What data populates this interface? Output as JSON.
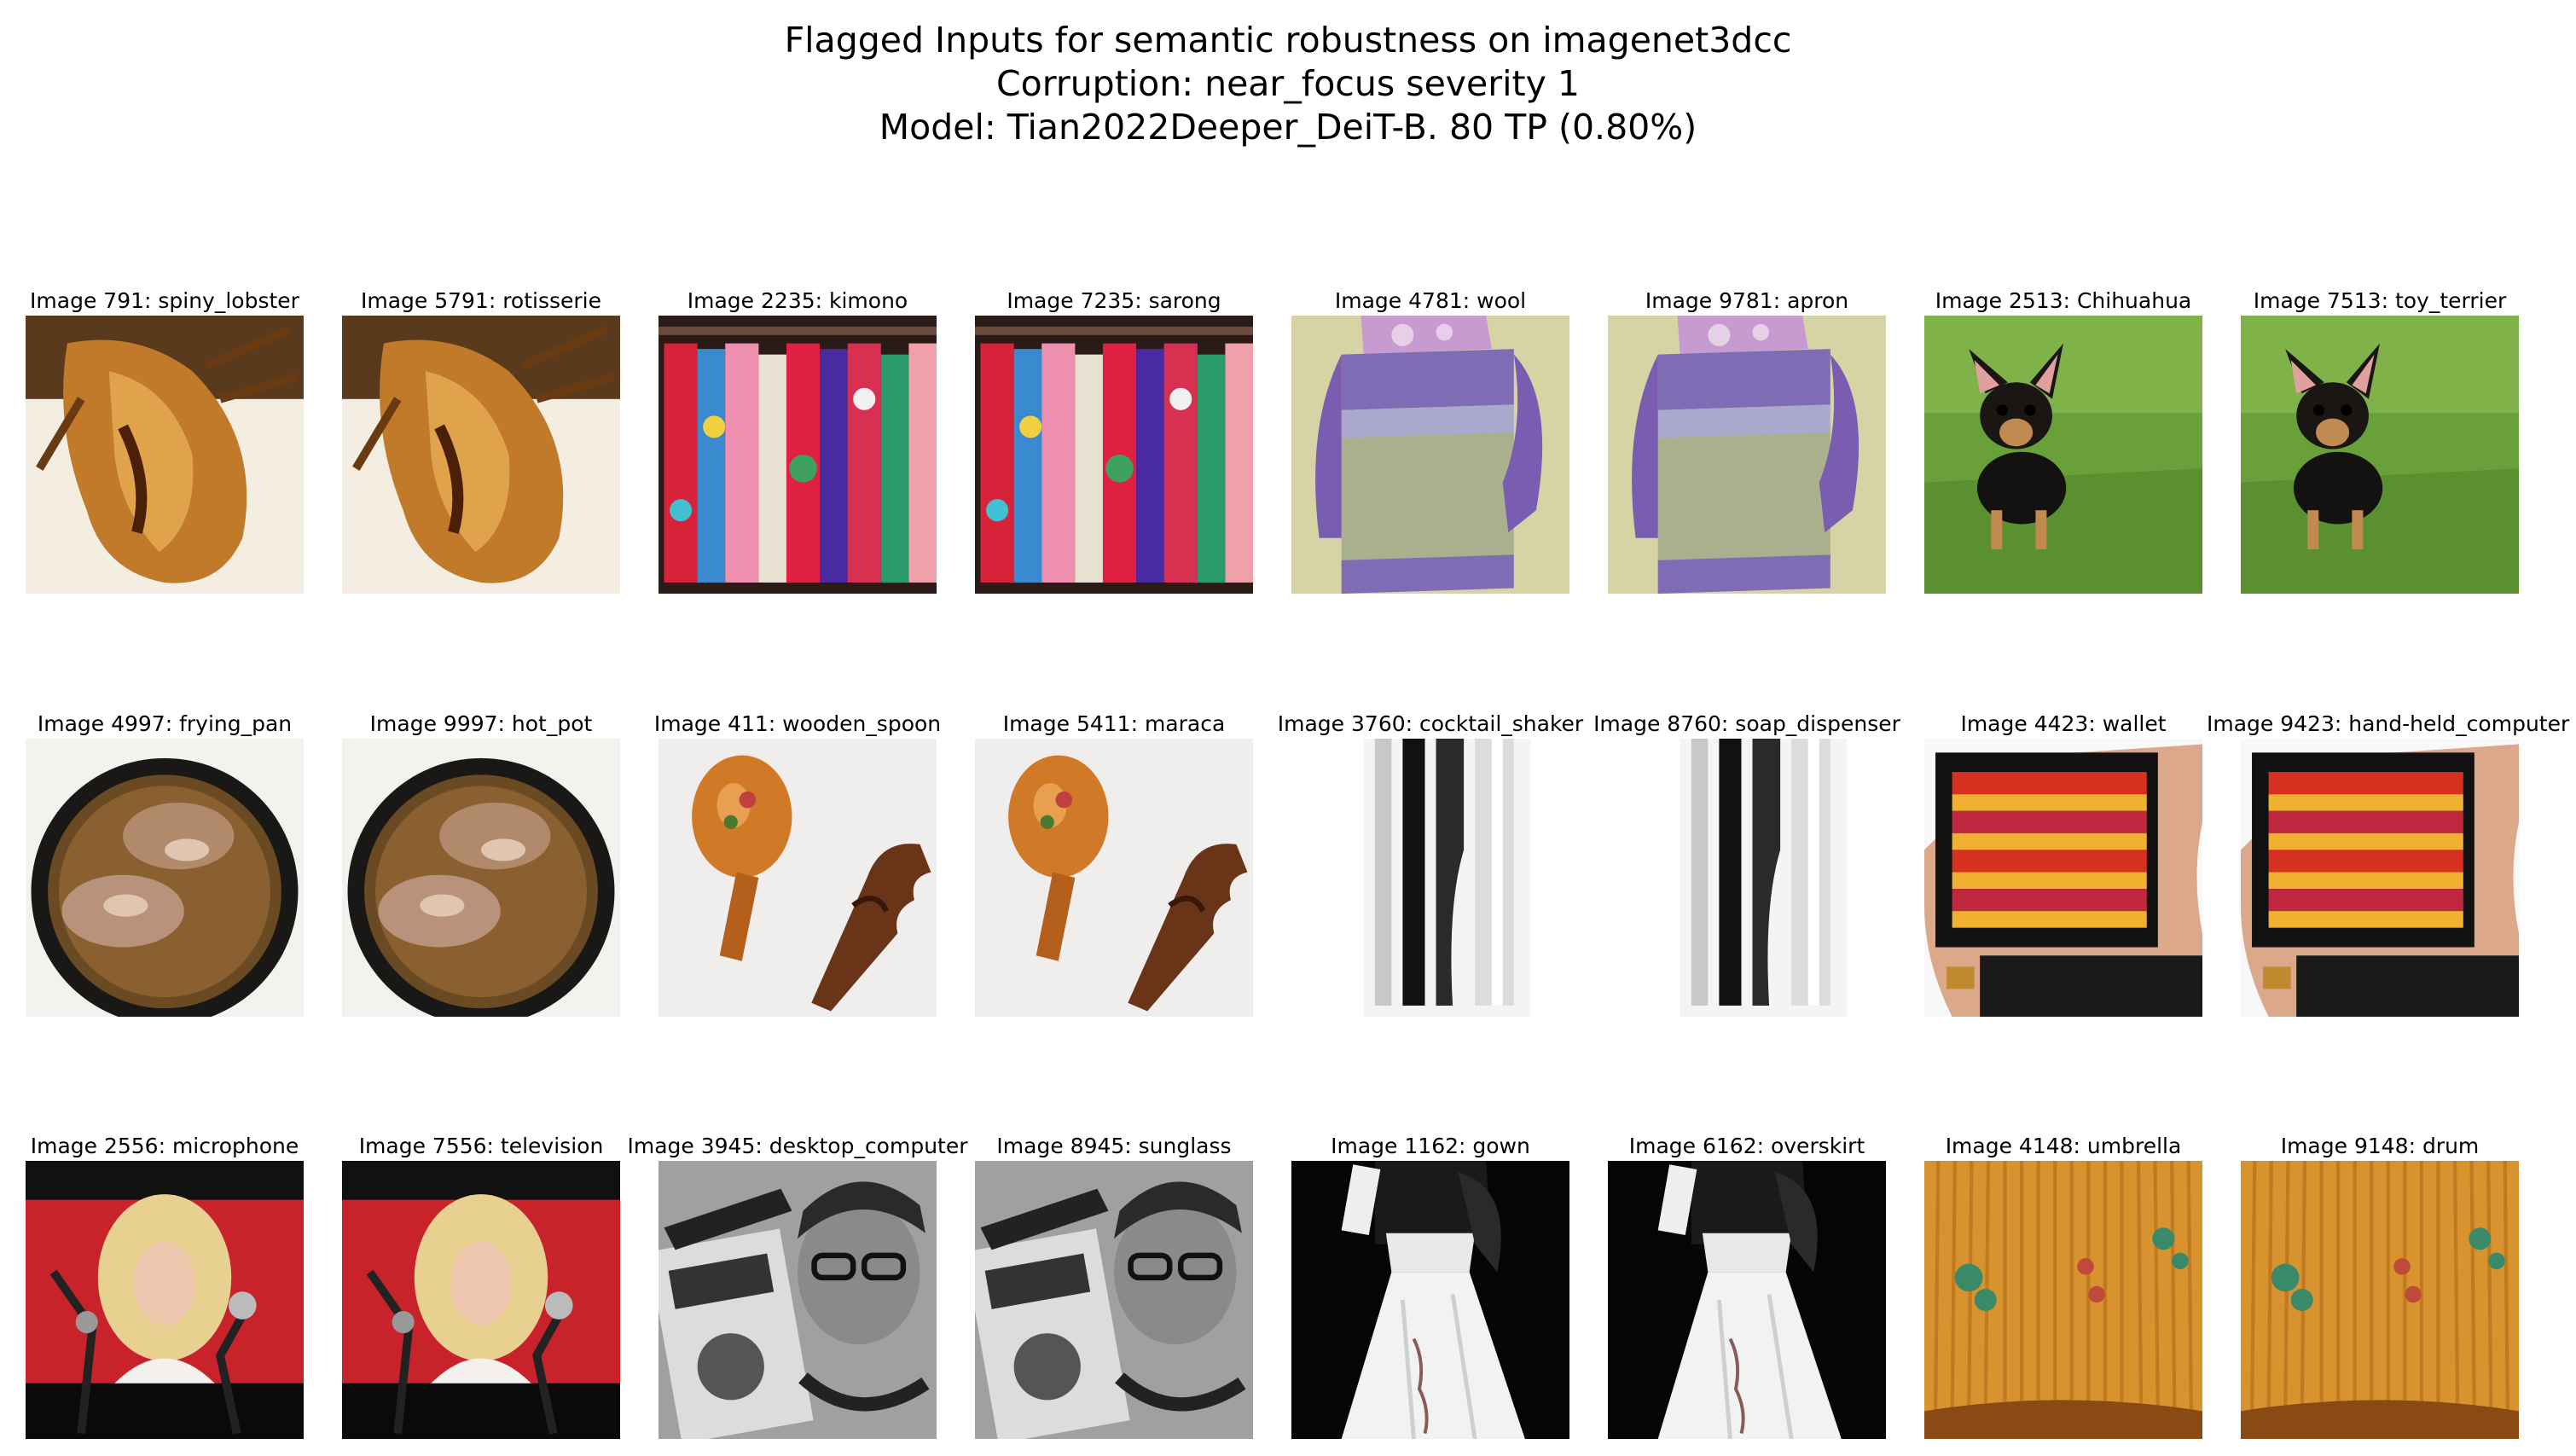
{
  "figure": {
    "title_lines": [
      "Flagged Inputs for semantic robustness on imagenet3dcc",
      "Corruption: near_focus severity 1",
      "Model: Tian2022Deeper_DeiT-B. 80 TP (0.80%)"
    ]
  },
  "images": [
    {
      "label": "Image 791: spiny_lobster",
      "scene": "lobster"
    },
    {
      "label": "Image 5791: rotisserie",
      "scene": "lobster"
    },
    {
      "label": "Image 2235: kimono",
      "scene": "kimono"
    },
    {
      "label": "Image 7235: sarong",
      "scene": "kimono"
    },
    {
      "label": "Image 4781: wool",
      "scene": "sweater"
    },
    {
      "label": "Image 9781: apron",
      "scene": "sweater"
    },
    {
      "label": "Image 2513: Chihuahua",
      "scene": "dog"
    },
    {
      "label": "Image 7513: toy_terrier",
      "scene": "dog"
    },
    {
      "label": "Image 4997: frying_pan",
      "scene": "pan"
    },
    {
      "label": "Image 9997: hot_pot",
      "scene": "pan"
    },
    {
      "label": "Image 411: wooden_spoon",
      "scene": "spoon"
    },
    {
      "label": "Image 5411: maraca",
      "scene": "spoon"
    },
    {
      "label": "Image 3760: cocktail_shaker",
      "scene": "shaker"
    },
    {
      "label": "Image 8760: soap_dispenser",
      "scene": "shaker"
    },
    {
      "label": "Image 4423: wallet",
      "scene": "wallet"
    },
    {
      "label": "Image 9423: hand-held_computer",
      "scene": "wallet"
    },
    {
      "label": "Image 2556: microphone",
      "scene": "singer"
    },
    {
      "label": "Image 7556: television",
      "scene": "singer"
    },
    {
      "label": "Image 3945: desktop_computer",
      "scene": "boombox"
    },
    {
      "label": "Image 8945: sunglass",
      "scene": "boombox"
    },
    {
      "label": "Image 1162: gown",
      "scene": "gown"
    },
    {
      "label": "Image 6162: overskirt",
      "scene": "gown"
    },
    {
      "label": "Image 4148: umbrella",
      "scene": "lampshade"
    },
    {
      "label": "Image 9148: drum",
      "scene": "lampshade"
    }
  ]
}
